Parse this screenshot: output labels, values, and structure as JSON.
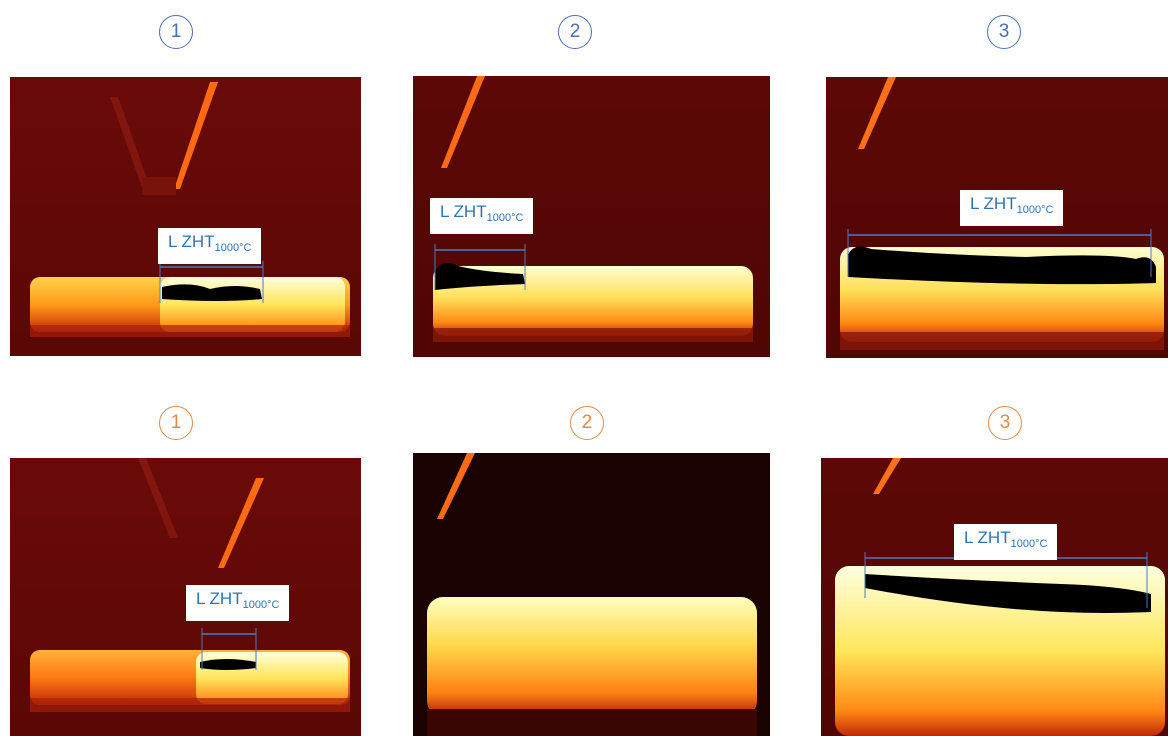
{
  "row1": {
    "badges": [
      "1",
      "2",
      "3"
    ],
    "color": "#4a6fb3",
    "panels": [
      {
        "label_main": "L ZHT",
        "label_sub": "1000°C"
      },
      {
        "label_main": "L ZHT",
        "label_sub": "1000°C"
      },
      {
        "label_main": "L ZHT",
        "label_sub": "1000°C"
      }
    ]
  },
  "row2": {
    "badges": [
      "1",
      "2",
      "3"
    ],
    "color": "#e08a4a",
    "panels": [
      {
        "label_main": "L ZHT",
        "label_sub": "1000°C"
      },
      {
        "label_main": "",
        "label_sub": ""
      },
      {
        "label_main": "L ZHT",
        "label_sub": "1000°C"
      }
    ]
  }
}
